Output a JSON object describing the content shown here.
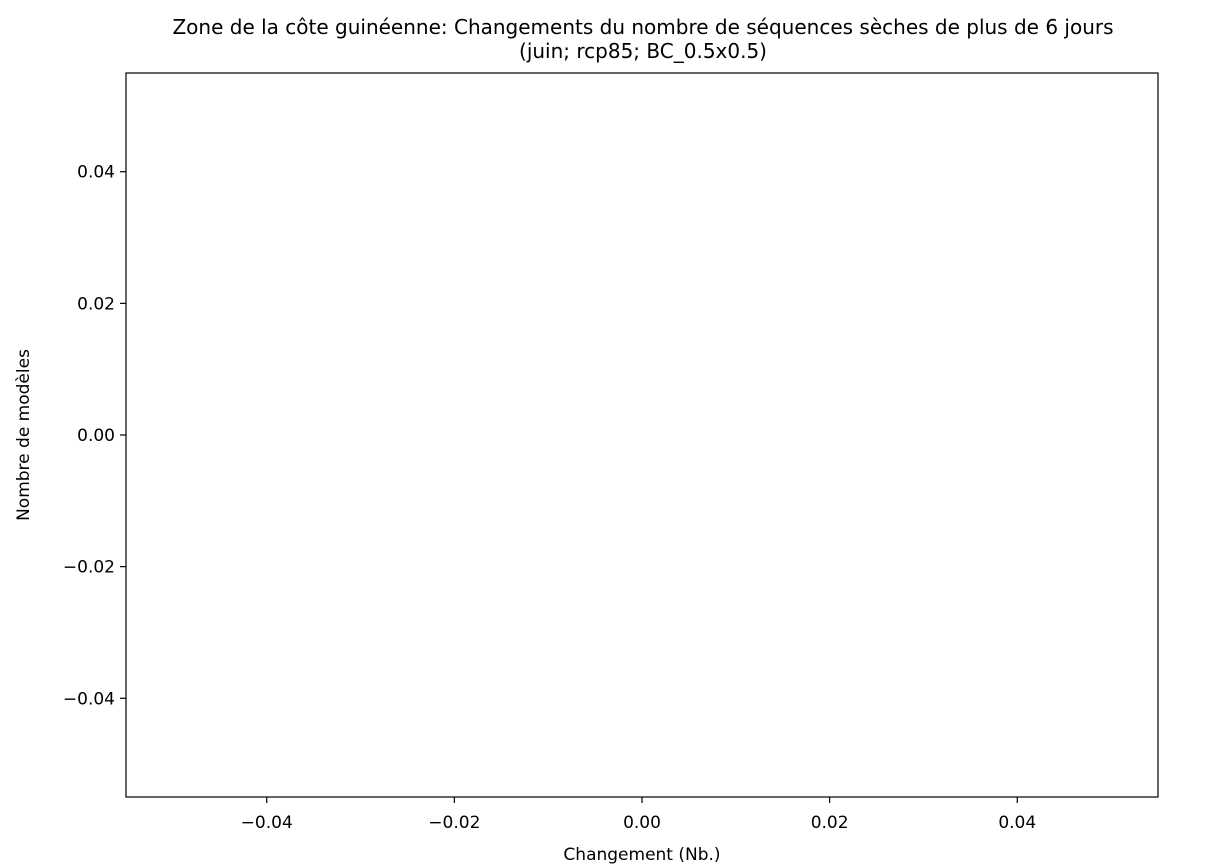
{
  "chart_data": {
    "type": "bar",
    "title": "Zone de la côte guinéenne: Changements du nombre de séquences sèches de plus de 6 jours",
    "subtitle": "(juin; rcp85; BC_0.5x0.5)",
    "xlabel": "Changement (Nb.)",
    "ylabel": "Nombre de modèles",
    "xlim": [
      -0.055,
      0.055
    ],
    "ylim": [
      -0.055,
      0.055
    ],
    "xticks": [
      -0.04,
      -0.02,
      0.0,
      0.02,
      0.04
    ],
    "xtick_labels": [
      "−0.04",
      "−0.02",
      "0.00",
      "0.02",
      "0.04"
    ],
    "yticks": [
      -0.04,
      -0.02,
      0.0,
      0.02,
      0.04
    ],
    "ytick_labels": [
      "−0.04",
      "−0.02",
      "0.00",
      "0.02",
      "0.04"
    ],
    "categories": [],
    "values": [],
    "grid": false,
    "legend": false
  }
}
